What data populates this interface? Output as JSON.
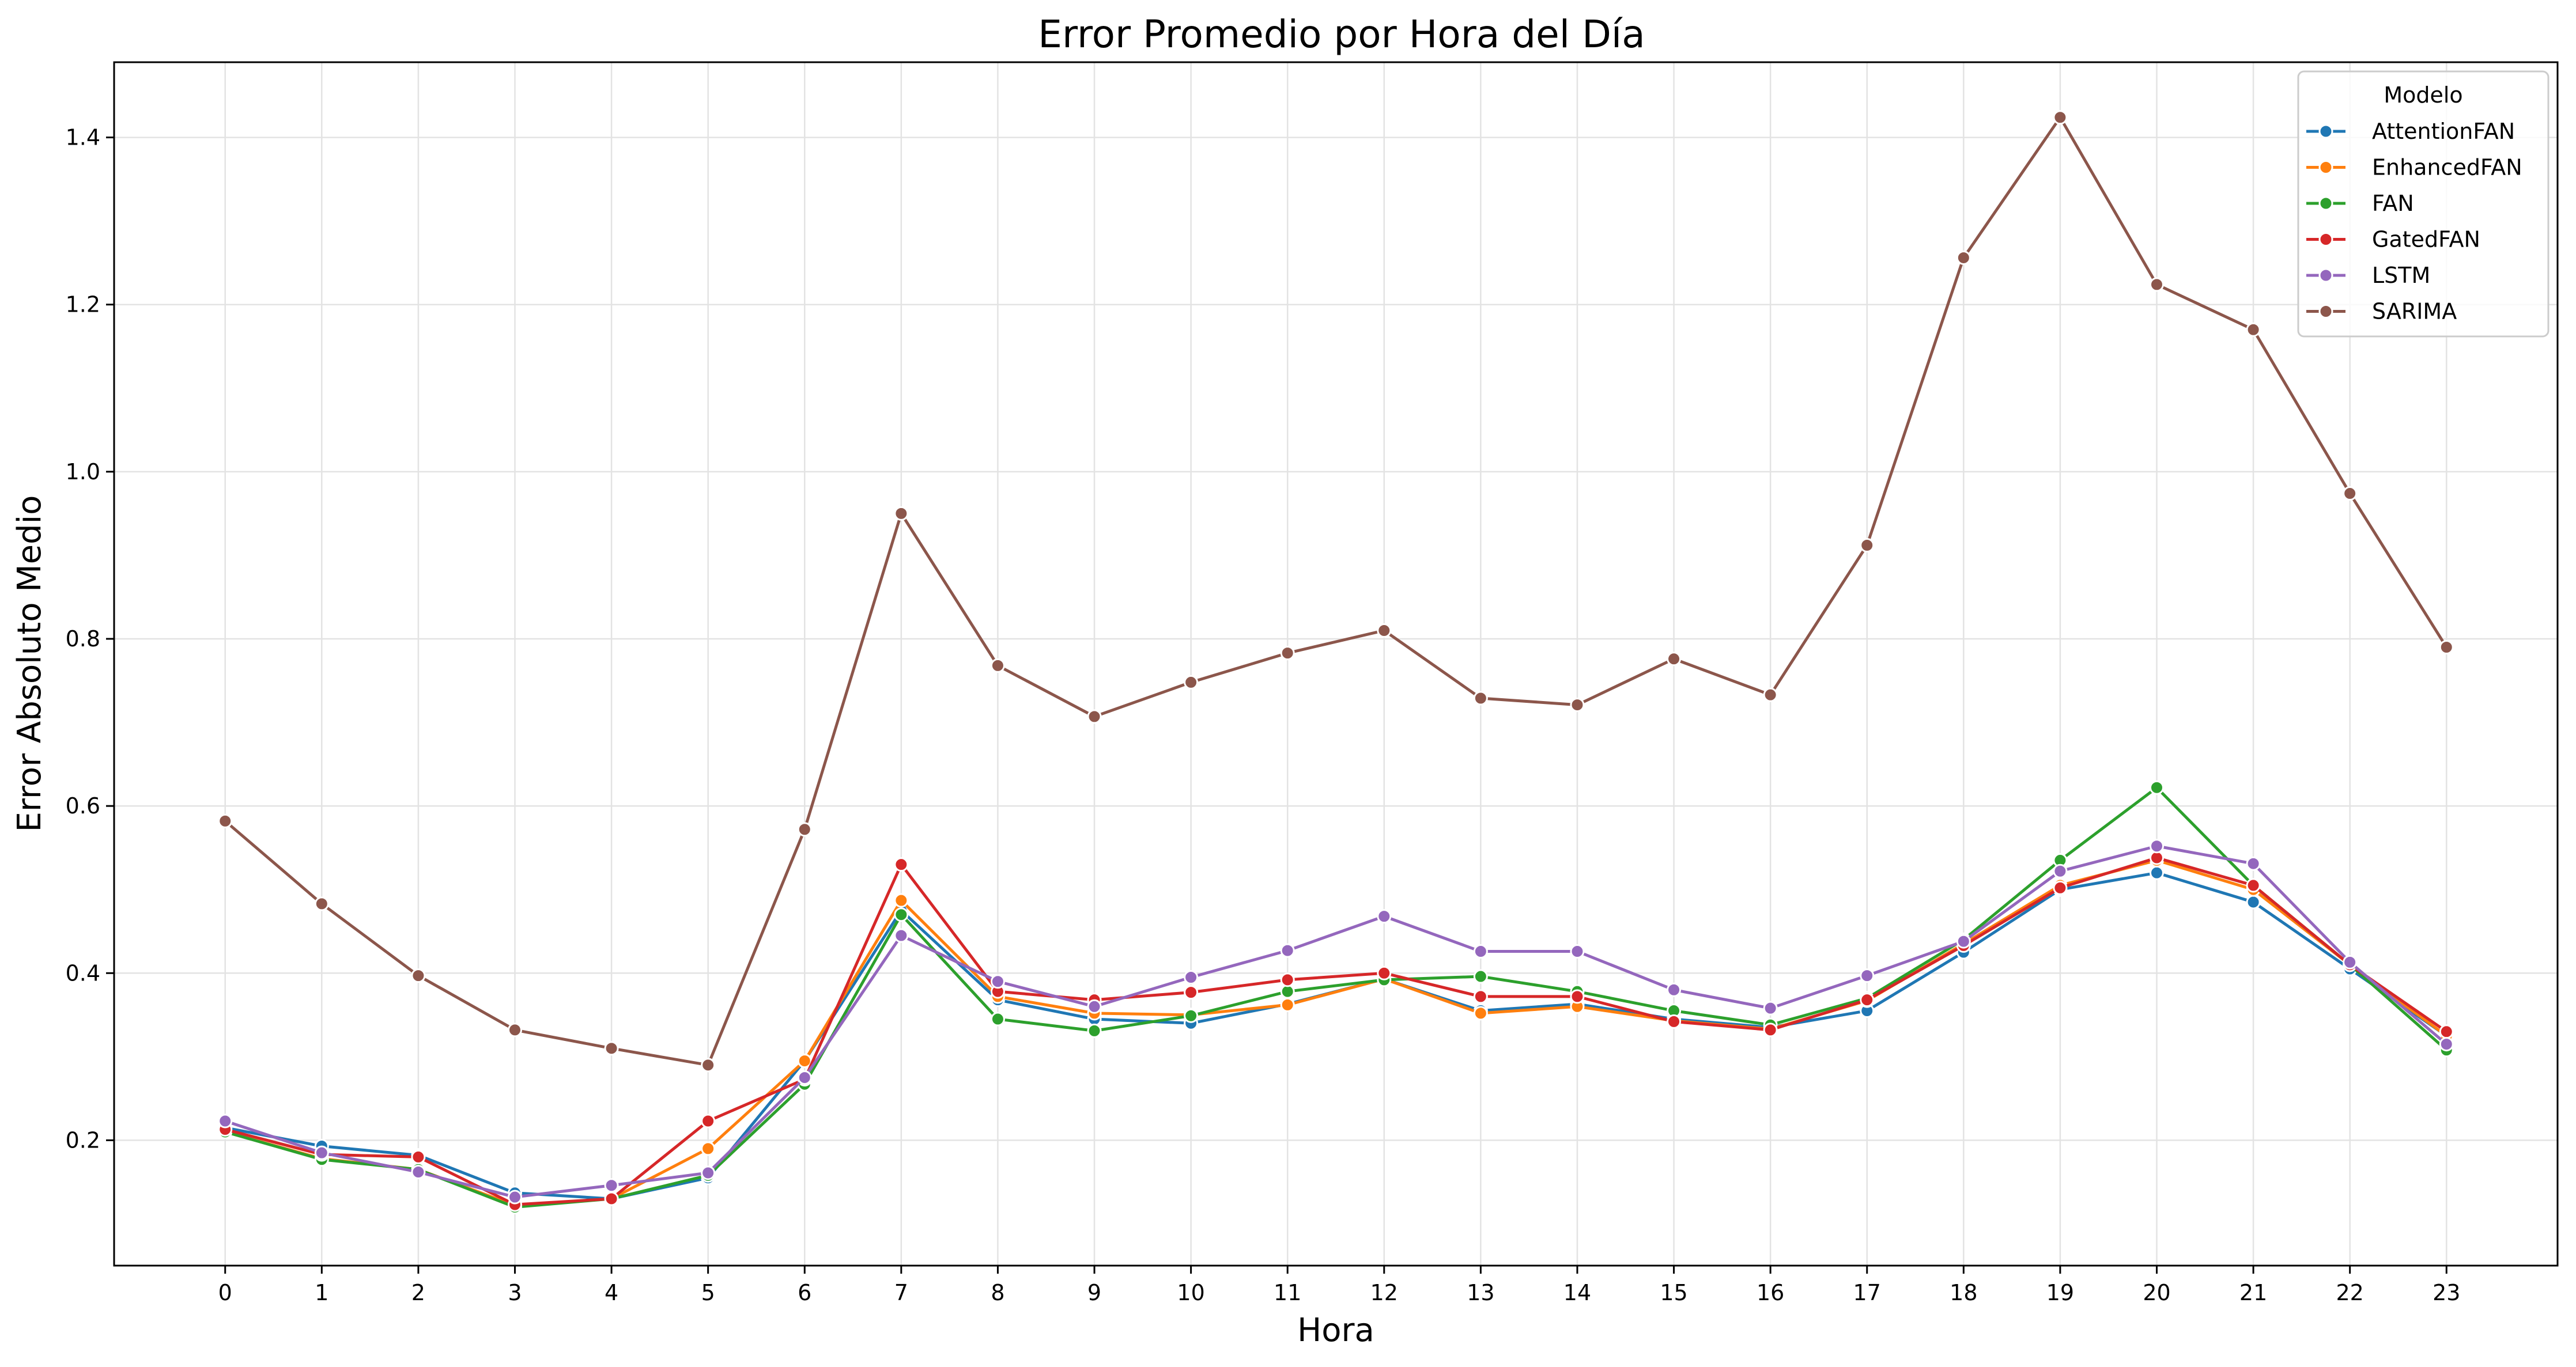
{
  "chart_data": {
    "type": "line",
    "title": "Error Promedio por Hora del Día",
    "xlabel": "Hora",
    "ylabel": "Error Absoluto Medio",
    "x": [
      0,
      1,
      2,
      3,
      4,
      5,
      6,
      7,
      8,
      9,
      10,
      11,
      12,
      13,
      14,
      15,
      16,
      17,
      18,
      19,
      20,
      21,
      22,
      23
    ],
    "x_ticks": [
      "0",
      "1",
      "2",
      "3",
      "4",
      "5",
      "6",
      "7",
      "8",
      "9",
      "10",
      "11",
      "12",
      "13",
      "14",
      "15",
      "16",
      "17",
      "18",
      "19",
      "20",
      "21",
      "22",
      "23"
    ],
    "xlim": [
      -1.15,
      24.15
    ],
    "ylim": [
      0.05,
      1.49
    ],
    "y_ticks": [
      0.2,
      0.4,
      0.6,
      0.8,
      1.0,
      1.2,
      1.4
    ],
    "y_tick_labels": [
      "0.2",
      "0.4",
      "0.6",
      "0.8",
      "1.0",
      "1.2",
      "1.4"
    ],
    "grid": true,
    "legend": {
      "title": "Modelo",
      "position": "top-right"
    },
    "series": [
      {
        "name": "AttentionFAN",
        "color": "#1f77b4",
        "values": [
          0.215,
          0.193,
          0.182,
          0.137,
          0.13,
          0.155,
          0.295,
          0.475,
          0.368,
          0.345,
          0.34,
          0.363,
          0.393,
          0.355,
          0.363,
          0.345,
          0.335,
          0.355,
          0.425,
          0.5,
          0.52,
          0.485,
          0.405,
          0.325
        ]
      },
      {
        "name": "EnhancedFAN",
        "color": "#ff7f0e",
        "values": [
          0.21,
          0.178,
          0.165,
          0.122,
          0.13,
          0.19,
          0.295,
          0.487,
          0.372,
          0.352,
          0.35,
          0.362,
          0.393,
          0.352,
          0.36,
          0.343,
          0.333,
          0.367,
          0.435,
          0.505,
          0.535,
          0.5,
          0.41,
          0.325
        ]
      },
      {
        "name": "FAN",
        "color": "#2ca02c",
        "values": [
          0.21,
          0.177,
          0.165,
          0.12,
          0.13,
          0.158,
          0.267,
          0.47,
          0.345,
          0.331,
          0.349,
          0.378,
          0.392,
          0.396,
          0.378,
          0.355,
          0.338,
          0.37,
          0.44,
          0.535,
          0.622,
          0.505,
          0.41,
          0.308
        ]
      },
      {
        "name": "GatedFAN",
        "color": "#d62728",
        "values": [
          0.213,
          0.183,
          0.18,
          0.123,
          0.13,
          0.223,
          0.273,
          0.53,
          0.378,
          0.368,
          0.377,
          0.392,
          0.4,
          0.372,
          0.372,
          0.342,
          0.332,
          0.368,
          0.433,
          0.502,
          0.538,
          0.505,
          0.41,
          0.33
        ]
      },
      {
        "name": "LSTM",
        "color": "#9467bd",
        "values": [
          0.223,
          0.185,
          0.162,
          0.132,
          0.146,
          0.161,
          0.275,
          0.445,
          0.39,
          0.36,
          0.395,
          0.427,
          0.468,
          0.426,
          0.426,
          0.38,
          0.358,
          0.397,
          0.438,
          0.522,
          0.552,
          0.531,
          0.413,
          0.315
        ]
      },
      {
        "name": "SARIMA",
        "color": "#8c564b",
        "values": [
          0.582,
          0.483,
          0.397,
          0.332,
          0.31,
          0.29,
          0.572,
          0.95,
          0.768,
          0.707,
          0.748,
          0.783,
          0.81,
          0.729,
          0.721,
          0.776,
          0.733,
          0.912,
          1.256,
          1.424,
          1.224,
          1.17,
          0.974,
          0.79
        ]
      }
    ]
  }
}
